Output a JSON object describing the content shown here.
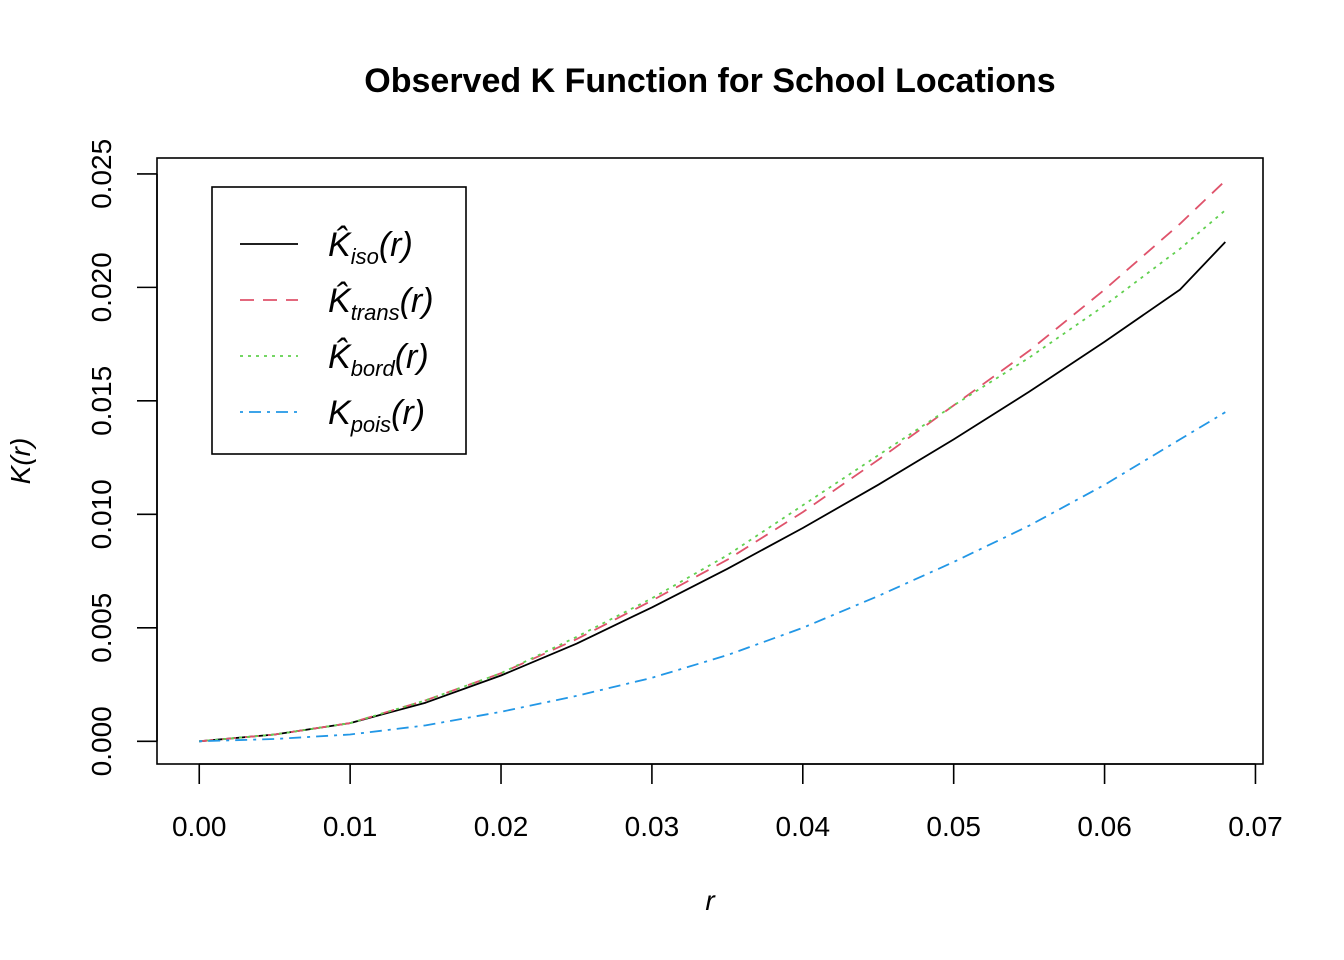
{
  "chart_data": {
    "type": "line",
    "title": "Observed K Function for School Locations",
    "xlabel": "r",
    "ylabel": "K(r)",
    "xlim": [
      -0.0028,
      0.0705
    ],
    "ylim": [
      -0.001,
      0.0257
    ],
    "x_ticks": [
      0.0,
      0.01,
      0.02,
      0.03,
      0.04,
      0.05,
      0.06,
      0.07
    ],
    "x_tick_labels": [
      "0.00",
      "0.01",
      "0.02",
      "0.03",
      "0.04",
      "0.05",
      "0.06",
      "0.07"
    ],
    "y_ticks": [
      0.0,
      0.005,
      0.01,
      0.015,
      0.02,
      0.025
    ],
    "y_tick_labels": [
      "0.000",
      "0.005",
      "0.010",
      "0.015",
      "0.020",
      "0.025"
    ],
    "legend_position": "top-left",
    "grid": false,
    "x": [
      0.0,
      0.005,
      0.01,
      0.015,
      0.02,
      0.025,
      0.03,
      0.035,
      0.04,
      0.045,
      0.05,
      0.055,
      0.06,
      0.065,
      0.068
    ],
    "series": [
      {
        "name": "K̂iso(r)",
        "label_main": "K̂",
        "label_sub": "iso",
        "label_arg": "(r)",
        "color": "#000000",
        "dash": "",
        "values": [
          0.0,
          0.0003,
          0.0008,
          0.0017,
          0.0029,
          0.0043,
          0.0059,
          0.0076,
          0.0094,
          0.0113,
          0.0133,
          0.0154,
          0.0176,
          0.0199,
          0.022
        ]
      },
      {
        "name": "K̂trans(r)",
        "label_main": "K̂",
        "label_sub": "trans",
        "label_arg": "(r)",
        "color": "#DF536B",
        "dash": "14,9",
        "values": [
          0.0,
          0.0003,
          0.0008,
          0.0018,
          0.003,
          0.0045,
          0.0062,
          0.008,
          0.0101,
          0.0124,
          0.0148,
          0.0172,
          0.0199,
          0.0228,
          0.0247
        ]
      },
      {
        "name": "K̂bord(r)",
        "label_main": "K̂",
        "label_sub": "bord",
        "label_arg": "(r)",
        "color": "#61D04F",
        "dash": "3,5",
        "values": [
          0.0,
          0.0003,
          0.0008,
          0.0018,
          0.003,
          0.0046,
          0.0063,
          0.0082,
          0.0104,
          0.0126,
          0.0148,
          0.0169,
          0.0192,
          0.0217,
          0.0234
        ]
      },
      {
        "name": "Kpois(r)",
        "label_main": "K",
        "label_sub": "pois",
        "label_arg": "(r)",
        "color": "#2297E6",
        "dash": "3,6,12,6",
        "values": [
          0.0,
          0.0001,
          0.0003,
          0.0007,
          0.0013,
          0.002,
          0.0028,
          0.0038,
          0.005,
          0.0064,
          0.0079,
          0.0095,
          0.0113,
          0.0133,
          0.0145
        ]
      }
    ]
  }
}
